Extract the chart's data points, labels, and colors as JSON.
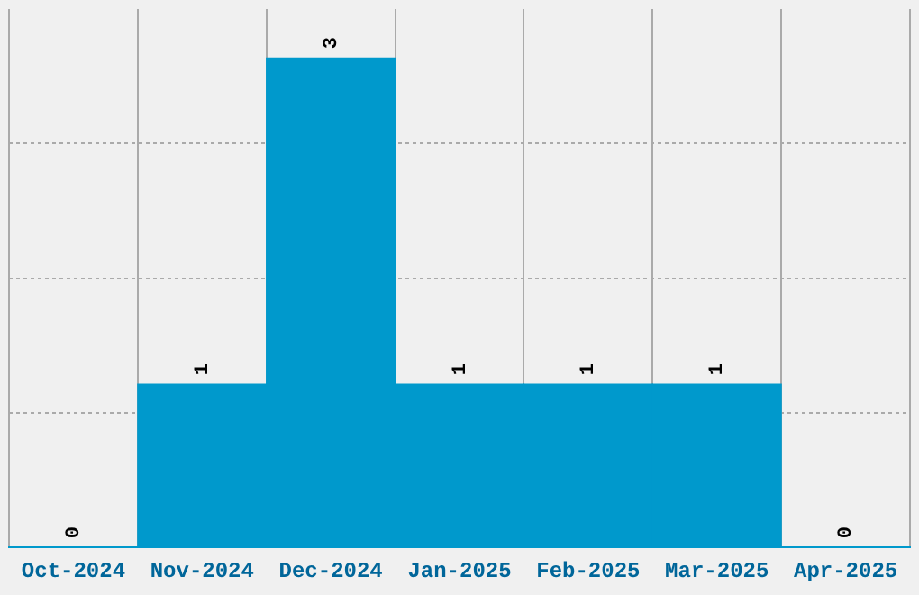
{
  "chart_data": {
    "type": "bar",
    "categories": [
      "Oct-2024",
      "Nov-2024",
      "Dec-2024",
      "Jan-2025",
      "Feb-2025",
      "Mar-2025",
      "Apr-2025"
    ],
    "values": [
      0,
      1,
      3,
      1,
      1,
      1,
      0
    ],
    "color": "#0099cc",
    "ylim": [
      0,
      3.3
    ],
    "yticks": [
      {
        "value": 0,
        "label": null
      },
      {
        "value": 0.825,
        "label": null
      },
      {
        "value": 1.65,
        "label": null
      },
      {
        "value": 2.475,
        "label": null
      }
    ],
    "tick_labels": "x",
    "grid": true,
    "data_labels": true,
    "legend": false
  }
}
